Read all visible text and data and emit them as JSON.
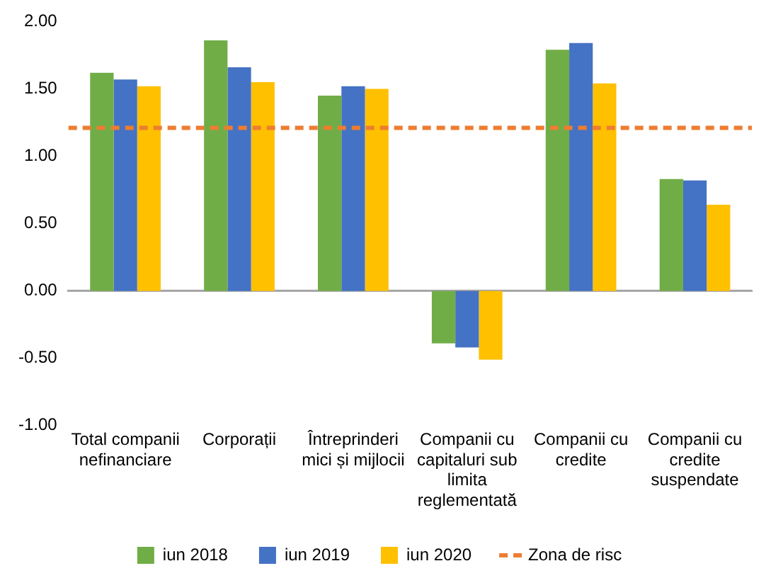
{
  "chart_data": {
    "type": "bar",
    "categories": [
      "Total companii nefinanciare",
      "Corporații",
      "Întreprinderi mici și mijlocii",
      "Companii cu capitaluri sub limita reglementată",
      "Companii cu credite",
      "Companii cu credite suspendate"
    ],
    "series": [
      {
        "name": "iun 2018",
        "color": "#70ad47",
        "values": [
          1.62,
          1.86,
          1.45,
          -0.39,
          1.79,
          0.83
        ]
      },
      {
        "name": "iun 2019",
        "color": "#4472c4",
        "values": [
          1.57,
          1.66,
          1.52,
          -0.42,
          1.84,
          0.82
        ]
      },
      {
        "name": "iun 2020",
        "color": "#ffc000",
        "values": [
          1.52,
          1.55,
          1.5,
          -0.51,
          1.54,
          0.64
        ]
      }
    ],
    "ylim": [
      -1,
      2
    ],
    "yticks": [
      {
        "value": -1,
        "label": "-1.00"
      },
      {
        "value": -0.5,
        "label": "-0.50"
      },
      {
        "value": 0,
        "label": "0.00"
      },
      {
        "value": 0.5,
        "label": "0.50"
      },
      {
        "value": 1,
        "label": "1.00"
      },
      {
        "value": 1.5,
        "label": "1.50"
      },
      {
        "value": 2,
        "label": "2.00"
      }
    ],
    "ref_lines": [
      {
        "axis": "y",
        "value": 1.21,
        "label": "Zona de risc",
        "color": "#ed7d31",
        "line_style": "dashed"
      }
    ],
    "legend": "bottom"
  }
}
